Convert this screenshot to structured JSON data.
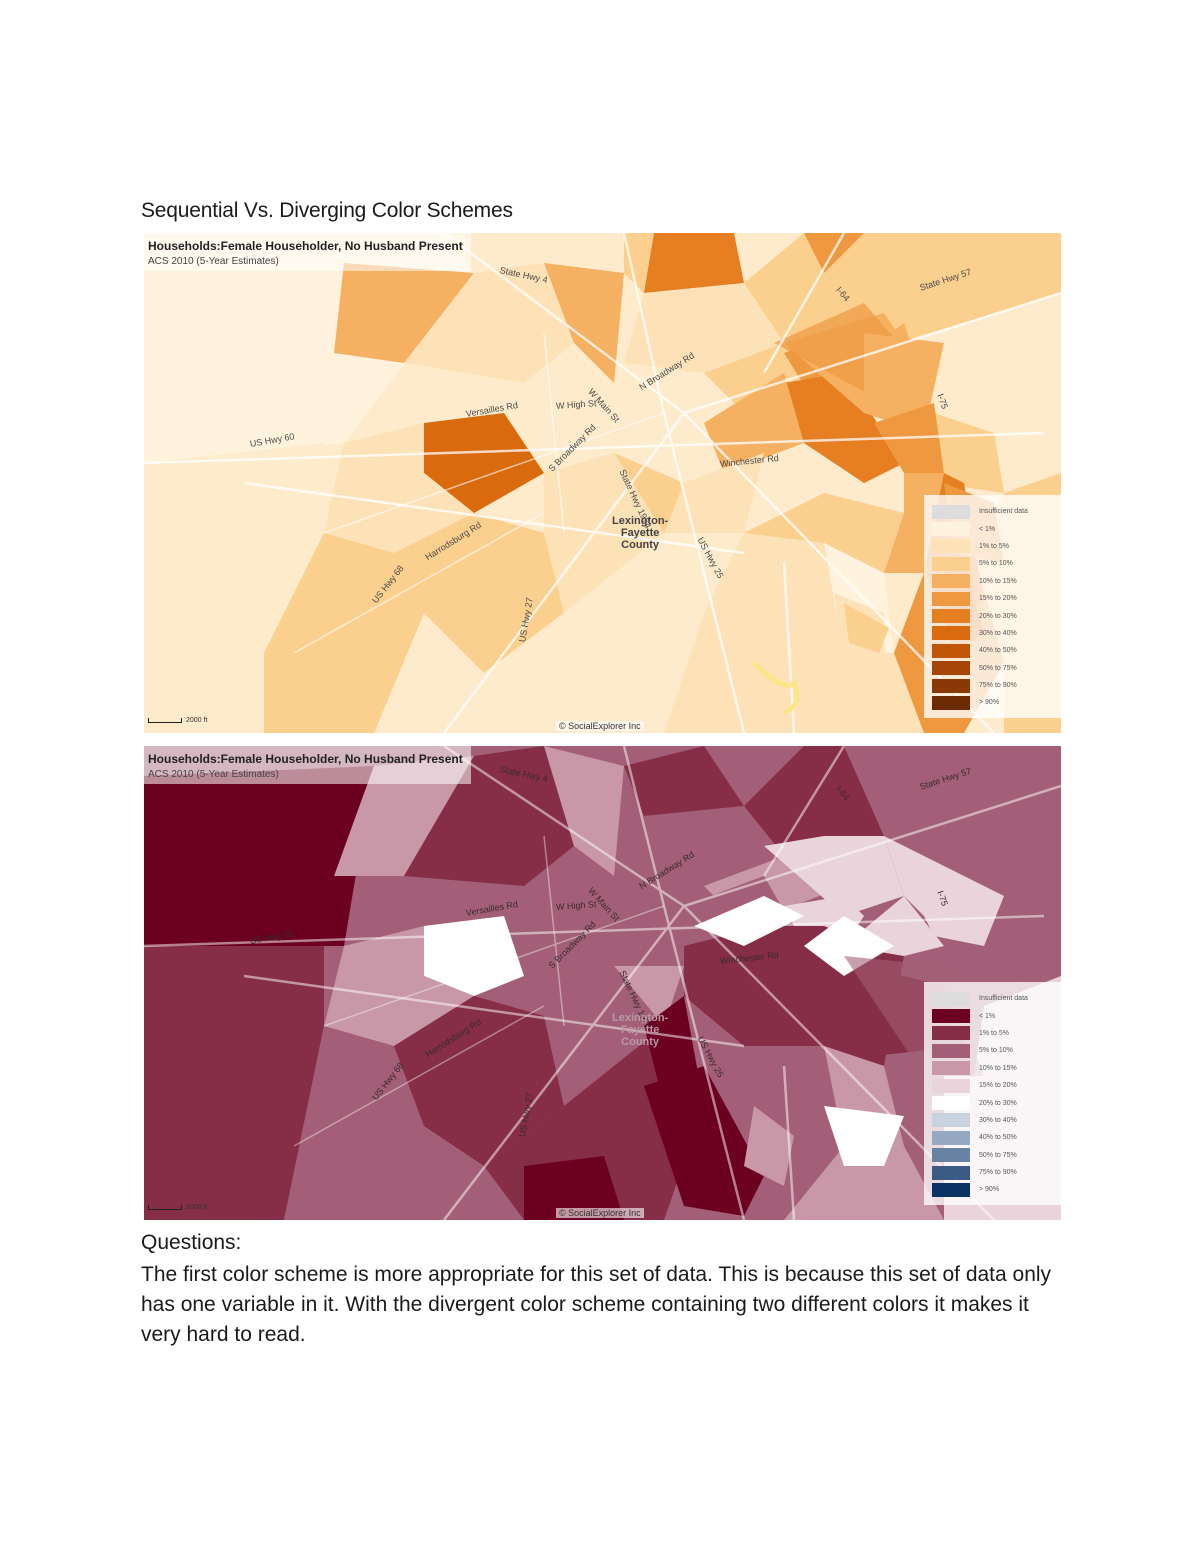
{
  "document": {
    "title": "Sequential Vs. Diverging Color Schemes",
    "questions_heading": "Questions:",
    "answer": "The first color scheme is more appropriate for this set of data. This is because this set of data only has one variable in it. With the divergent color scheme containing two different colors it makes it very hard to read."
  },
  "maps": [
    {
      "scheme": "sequential",
      "title": "Households:Female Householder, No Husband Present",
      "subtitle": "ACS 2010 (5-Year Estimates)",
      "copyright": "© SocialExplorer Inc",
      "scale_label": "2000 ft",
      "place_label": "Lexington-\nFayette\nCounty",
      "road_labels": [
        "State Hwy 4",
        "US Hwy 60",
        "W High St",
        "Versailles Rd",
        "N Broadway Rd",
        "S Broadway Rd",
        "State Hwy 1974",
        "US Hwy 25",
        "Harrodsburg Rd",
        "US Hwy 68",
        "US Hwy 27",
        "State Hwy 57",
        "I-75",
        "Winchester Rd",
        "W Main St",
        "I-64"
      ],
      "legend": [
        {
          "label": "Insufficient data",
          "color": "#dcdcdc"
        },
        {
          "label": "< 1%",
          "color": "#fff3dd"
        },
        {
          "label": "1% to 5%",
          "color": "#fde2b8"
        },
        {
          "label": "5% to 10%",
          "color": "#fbcf8e"
        },
        {
          "label": "10% to 15%",
          "color": "#f5b061"
        },
        {
          "label": "15% to 20%",
          "color": "#ee9840"
        },
        {
          "label": "20% to 30%",
          "color": "#e67e22"
        },
        {
          "label": "30% to 40%",
          "color": "#d96a0d"
        },
        {
          "label": "40% to 50%",
          "color": "#c25608"
        },
        {
          "label": "50% to 75%",
          "color": "#a64507"
        },
        {
          "label": "75% to 90%",
          "color": "#8a3806"
        },
        {
          "label": "> 90%",
          "color": "#6e2b03"
        }
      ]
    },
    {
      "scheme": "diverging",
      "title": "Households:Female Householder, No Husband Present",
      "subtitle": "ACS 2010 (5-Year Estimates)",
      "copyright": "© SocialExplorer Inc",
      "scale_label": "2000 ft",
      "place_label": "Lexington-\nFayette\nCounty",
      "road_labels": [
        "State Hwy 4",
        "US Hwy 60",
        "W High St",
        "Versailles Rd",
        "N Broadway Rd",
        "S Broadway Rd",
        "State Hwy 1974",
        "US Hwy 25",
        "Harrodsburg Rd",
        "US Hwy 68",
        "US Hwy 27",
        "State Hwy 57",
        "I-75",
        "Winchester Rd",
        "W Main St",
        "I-64"
      ],
      "legend": [
        {
          "label": "Insufficient data",
          "color": "#dcdcdc"
        },
        {
          "label": "< 1%",
          "color": "#6b0020"
        },
        {
          "label": "1% to 5%",
          "color": "#862d48"
        },
        {
          "label": "5% to 10%",
          "color": "#a35f77"
        },
        {
          "label": "10% to 15%",
          "color": "#c897a8"
        },
        {
          "label": "15% to 20%",
          "color": "#e9d4dc"
        },
        {
          "label": "20% to 30%",
          "color": "#ffffff"
        },
        {
          "label": "30% to 40%",
          "color": "#c9d3e0"
        },
        {
          "label": "40% to 50%",
          "color": "#97a9c2"
        },
        {
          "label": "50% to 75%",
          "color": "#6782a3"
        },
        {
          "label": "75% to 90%",
          "color": "#3b5a84"
        },
        {
          "label": "> 90%",
          "color": "#0b3366"
        }
      ]
    }
  ]
}
